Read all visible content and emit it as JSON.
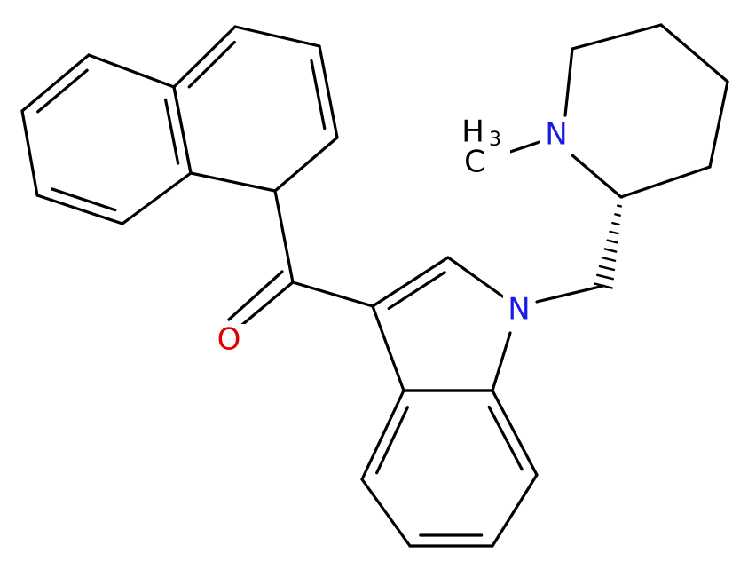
{
  "atoms": {
    "oxygen": "O",
    "indole_nitrogen": "N",
    "piperidine_nitrogen": "N",
    "methyl": {
      "h": "H",
      "subscript": "3",
      "c": "C"
    }
  }
}
